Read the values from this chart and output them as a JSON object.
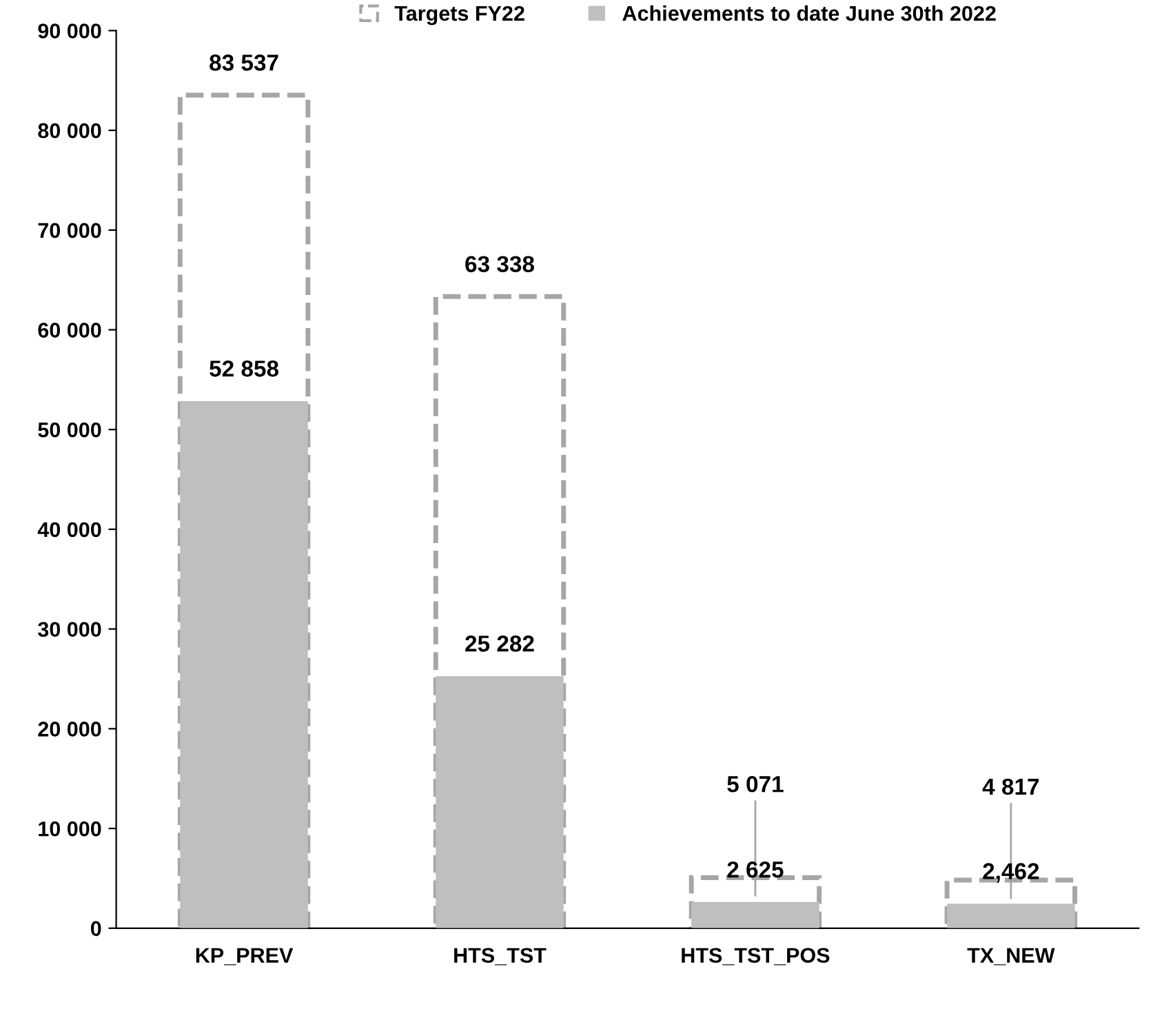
{
  "chart_data": {
    "type": "bar",
    "categories": [
      "KP_PREV",
      "HTS_TST",
      "HTS_TST_POS",
      "TX_NEW"
    ],
    "series": [
      {
        "name": "Targets FY22",
        "color": "#a6a6a6",
        "line_style": "dashed",
        "values": [
          83537,
          63338,
          5071,
          4817
        ],
        "value_labels": [
          "83 537",
          "63 338",
          "5 071",
          "4 817"
        ]
      },
      {
        "name": "Achievements to date June 30th 2022",
        "color": "#bfbfbf",
        "line_style": "solid",
        "values": [
          52858,
          25282,
          2625,
          2462
        ],
        "value_labels": [
          "52 858",
          "25 282",
          "2 625",
          "2,462"
        ]
      }
    ],
    "ylim": [
      0,
      90000
    ],
    "yticks": [
      {
        "value": 0,
        "label": "0"
      },
      {
        "value": 10000,
        "label": "10 000"
      },
      {
        "value": 20000,
        "label": "20 000"
      },
      {
        "value": 30000,
        "label": "30 000"
      },
      {
        "value": 40000,
        "label": "40 000"
      },
      {
        "value": 50000,
        "label": "50 000"
      },
      {
        "value": 60000,
        "label": "60 000"
      },
      {
        "value": 70000,
        "label": "70 000"
      },
      {
        "value": 80000,
        "label": "80 000"
      },
      {
        "value": 90000,
        "label": "90 000"
      }
    ],
    "grid": false,
    "legend": "top"
  }
}
